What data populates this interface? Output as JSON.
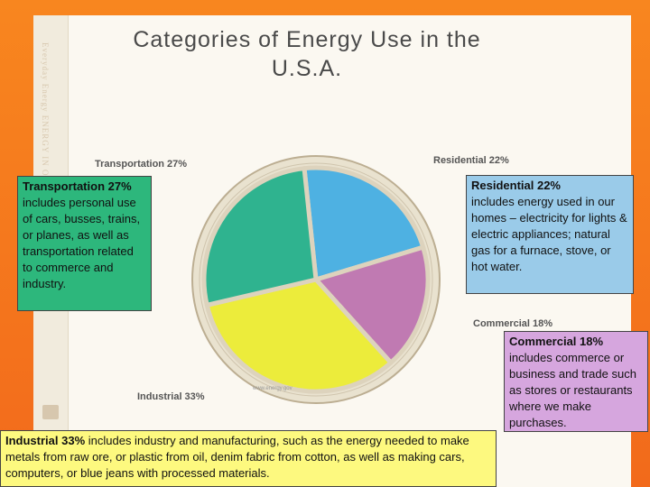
{
  "title": "Categories of Energy Use in the U.S.A.",
  "spine": {
    "text": "Everyday Energy  ENERGY IN OUR LIVES",
    "footer": "FUTURE GRADES 6 TO 8"
  },
  "credit": "www.energy.gov",
  "chart_data": {
    "type": "pie",
    "title": "Categories of Energy Use in the U.S.A.",
    "slices": [
      {
        "name": "Residential 22%",
        "category": "Residential",
        "value": 22,
        "color": "#4eb1e2"
      },
      {
        "name": "Commercial 18%",
        "category": "Commercial",
        "value": 18,
        "color": "#c07ab2"
      },
      {
        "name": "Industrial 33%",
        "category": "Industrial",
        "value": 33,
        "color": "#ecec3b"
      },
      {
        "name": "Transportation 27%",
        "category": "Transportation",
        "value": 27,
        "color": "#2fb38f"
      }
    ]
  },
  "boxes": {
    "transportation": {
      "head": "Transportation 27%",
      "body": " includes personal use of cars, busses, trains, or planes, as well as transportation related to commerce and industry."
    },
    "residential": {
      "head": "Residential 22%",
      "body": "includes energy used in our homes – electricity for lights & electric appliances; natural gas for a furnace, stove, or hot water."
    },
    "commercial": {
      "head": "Commercial 18%",
      "body": "includes commerce or business and trade such as stores or restaurants where we make purchases."
    },
    "industrial": {
      "head": "Industrial 33%",
      "body": " includes industry and manufacturing, such as the energy needed to make metals from raw ore, or plastic from oil, denim fabric from cotton, as well as making cars, computers, or blue jeans with processed materials."
    }
  }
}
